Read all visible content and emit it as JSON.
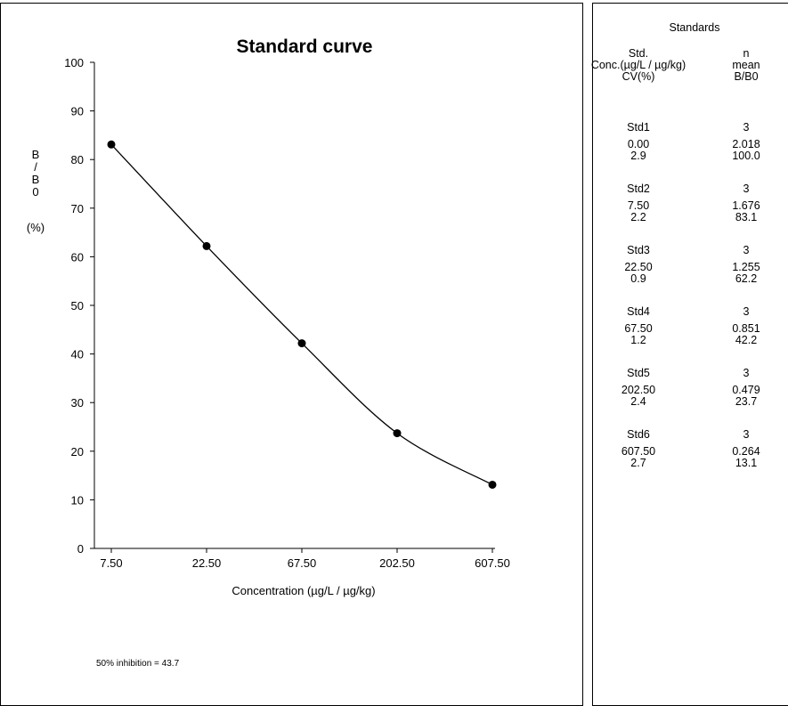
{
  "chart_data": {
    "type": "line",
    "title": "Standard curve",
    "xlabel": "Concentration (µg/L / µg/kg)",
    "ylabel_lines": [
      "B",
      "/",
      "B",
      "0"
    ],
    "ylabel_unit": "(%)",
    "x_scale": "categorical",
    "categories": [
      "7.50",
      "22.50",
      "67.50",
      "202.50",
      "607.50"
    ],
    "series": [
      {
        "values": [
          83.1,
          62.2,
          42.2,
          23.7,
          13.1
        ]
      }
    ],
    "ylim": [
      0,
      100
    ],
    "yticks": [
      0,
      10,
      20,
      30,
      40,
      50,
      60,
      70,
      80,
      90,
      100
    ],
    "grid": false,
    "smooth": true,
    "annotation": "50% inhibition = 43.7"
  },
  "standards": {
    "title": "Standards",
    "col1_header": [
      "Std.",
      "Conc.(µg/L / µg/kg)",
      "CV(%)"
    ],
    "col2_header": [
      "n",
      "mean",
      "B/B0"
    ],
    "rows": [
      {
        "name": "Std1",
        "n": "3",
        "conc": "0.00",
        "mean": "2.018",
        "cv": "2.9",
        "bb0": "100.0"
      },
      {
        "name": "Std2",
        "n": "3",
        "conc": "7.50",
        "mean": "1.676",
        "cv": "2.2",
        "bb0": "83.1"
      },
      {
        "name": "Std3",
        "n": "3",
        "conc": "22.50",
        "mean": "1.255",
        "cv": "0.9",
        "bb0": "62.2"
      },
      {
        "name": "Std4",
        "n": "3",
        "conc": "67.50",
        "mean": "0.851",
        "cv": "1.2",
        "bb0": "42.2"
      },
      {
        "name": "Std5",
        "n": "3",
        "conc": "202.50",
        "mean": "0.479",
        "cv": "2.4",
        "bb0": "23.7"
      },
      {
        "name": "Std6",
        "n": "3",
        "conc": "607.50",
        "mean": "0.264",
        "cv": "2.7",
        "bb0": "13.1"
      }
    ]
  }
}
